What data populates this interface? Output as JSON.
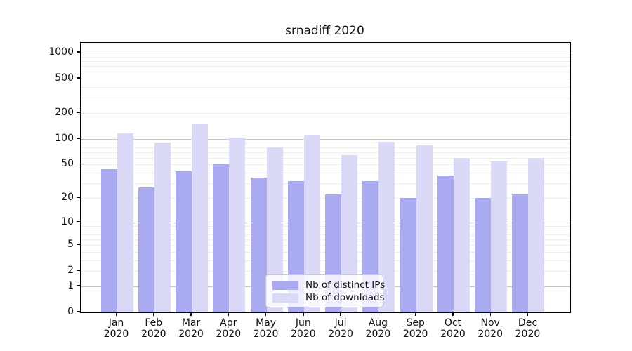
{
  "title": "srnadiff 2020",
  "chart_data": {
    "type": "bar",
    "title": "srnadiff 2020",
    "categories": [
      "Jan 2020",
      "Feb 2020",
      "Mar 2020",
      "Apr 2020",
      "May 2020",
      "Jun 2020",
      "Jul 2020",
      "Aug 2020",
      "Sep 2020",
      "Oct 2020",
      "Nov 2020",
      "Dec 2020"
    ],
    "series": [
      {
        "name": "Nb of distinct IPs",
        "color": "#aaaaf0",
        "values": [
          44,
          27,
          42,
          50,
          35,
          32,
          22,
          32,
          20,
          37,
          20,
          22
        ]
      },
      {
        "name": "Nb of downloads",
        "color": "#dadaf8",
        "values": [
          116,
          90,
          150,
          104,
          79,
          112,
          64,
          93,
          84,
          60,
          54,
          60
        ]
      }
    ],
    "xlabel": "",
    "ylabel": "",
    "yscale": "log1p",
    "yticks": [
      0,
      1,
      2,
      5,
      10,
      20,
      50,
      100,
      200,
      500,
      1000
    ],
    "ylim": [
      0,
      1300
    ],
    "grid": {
      "major_lines": [
        1,
        10,
        100,
        1000
      ],
      "minor_multipliers": [
        2,
        3,
        4,
        5,
        6,
        7,
        8,
        9
      ],
      "minor_decades": [
        1,
        10,
        100
      ]
    },
    "legend_position": "bottom-center"
  },
  "colors": {
    "bar_ips": "#aaaaf0",
    "bar_downloads": "#dadaf8",
    "major_grid": "#c6c6c6",
    "minor_grid": "#ededed",
    "axis": "#000000",
    "background": "#ffffff"
  }
}
